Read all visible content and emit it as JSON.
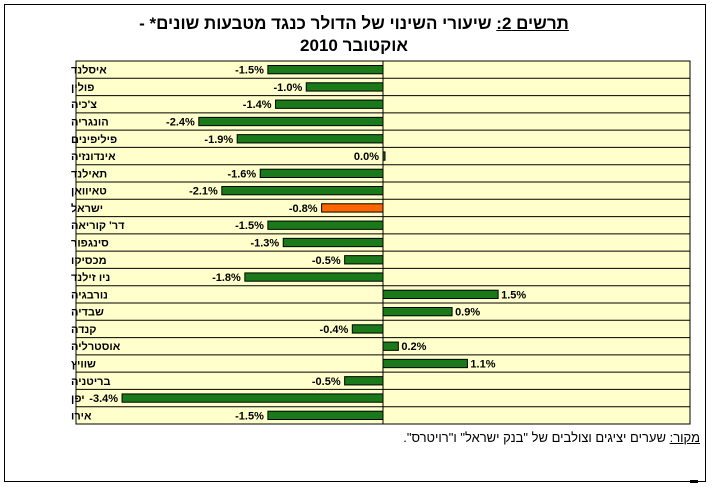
{
  "title": {
    "prefix": "תרשים 2:",
    "line1": "שיעורי השינוי של הדולר כנגד מטבעות שונים* -",
    "line2": "אוקטובר 2010"
  },
  "source": {
    "label": "מקור:",
    "text": "שערים יציגים וצולבים של \"בנק ישראל\" ו\"רויטרס\"."
  },
  "colors": {
    "plot_bg": "#FFFFCC",
    "bar": "#1A7A1A",
    "highlight": "#FF6600",
    "grid": "#000000"
  },
  "chart_data": {
    "type": "bar",
    "orientation": "horizontal",
    "grid": true,
    "xlim": [
      -4.0,
      4.0
    ],
    "categories": [
      "איסלנד",
      "פולין",
      "צ'כיה",
      "הונגריה",
      "פיליפינים",
      "אינדונזיה",
      "תאילנד",
      "טאיוואן",
      "ישראל",
      "דר' קוריאה",
      "סינגפור",
      "מכסיקו",
      "ניו זילנד",
      "נורבגיה",
      "שבדיה",
      "קנדה",
      "אוסטרליה",
      "שוויץ",
      "בריטניה",
      "יפן",
      "אירו"
    ],
    "values": [
      -1.5,
      -1.0,
      -1.4,
      -2.4,
      -1.9,
      0.0,
      -1.6,
      -2.1,
      -0.8,
      -1.5,
      -1.3,
      -0.5,
      -1.8,
      1.5,
      0.9,
      -0.4,
      0.2,
      1.1,
      -0.5,
      -3.4,
      -1.5
    ],
    "value_labels": [
      "-1.5%",
      "-1.0%",
      "-1.4%",
      "-2.4%",
      "-1.9%",
      "0.0%",
      "-1.6%",
      "-2.1%",
      "-0.8%",
      "-1.5%",
      "-1.3%",
      "-0.5%",
      "-1.8%",
      "1.5%",
      "0.9%",
      "-0.4%",
      "0.2%",
      "1.1%",
      "-0.5%",
      "-3.4%",
      "-1.5%"
    ],
    "highlight_category": "ישראל"
  }
}
